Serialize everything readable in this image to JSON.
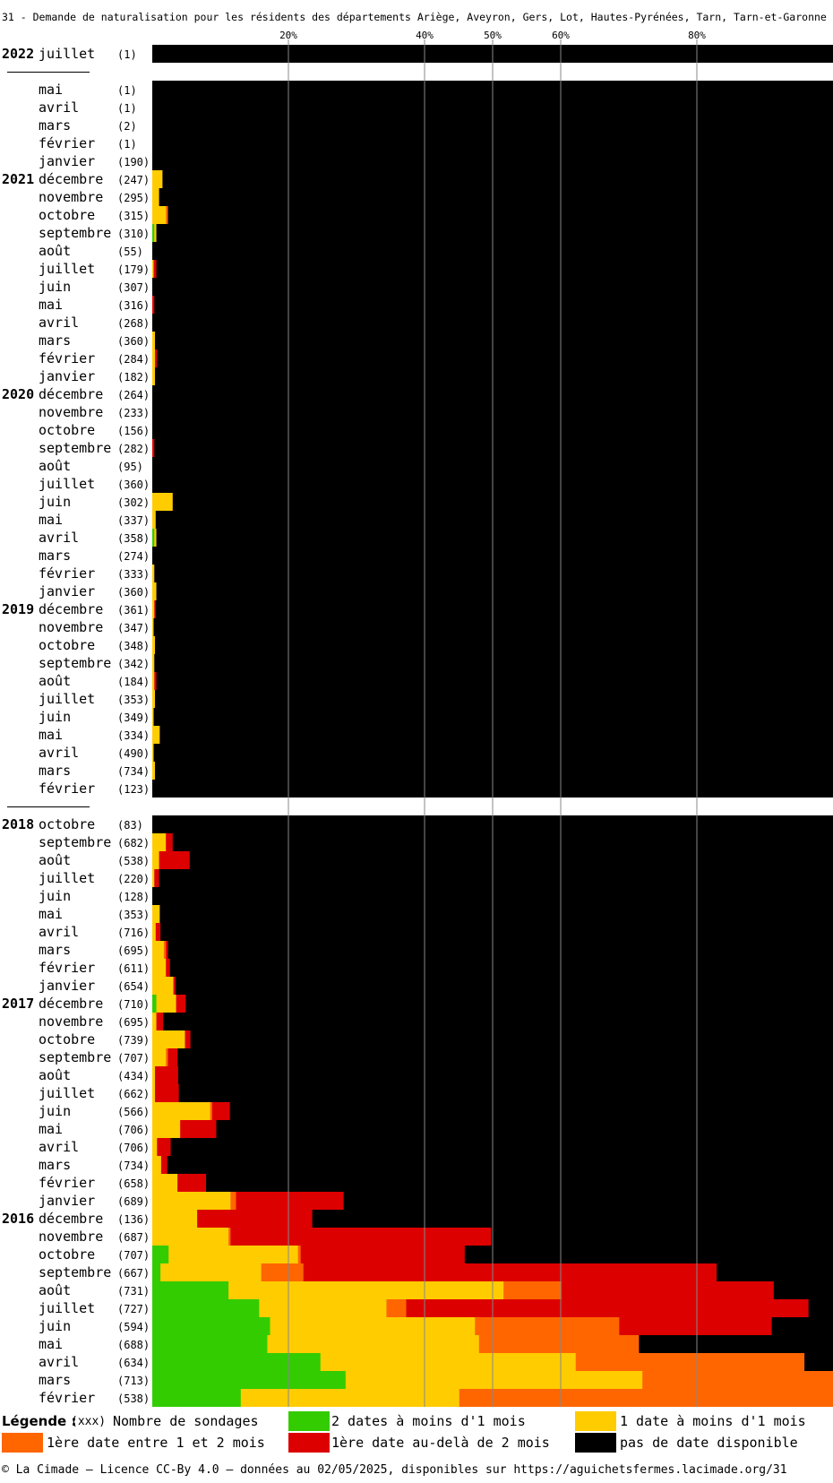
{
  "chart_data": {
    "type": "bar",
    "orientation": "horizontal-stacked-100%",
    "title": "31 - Demande de naturalisation pour les résidents des départements Ariège, Aveyron, Gers, Lot, Hautes-Pyrénées, Tarn, Tarn-et-Garonne",
    "xticks": [
      "20%",
      "40%",
      "50%",
      "60%",
      "80%"
    ],
    "xtick_values": [
      20,
      40,
      50,
      60,
      80
    ],
    "xlim": [
      0,
      100
    ],
    "grid": true,
    "series": [
      {
        "name": "2 dates à moins d'1 mois",
        "color": "#33cc00"
      },
      {
        "name": "1 date à moins d'1 mois",
        "color": "#ffcc00"
      },
      {
        "name": "1ère date entre 1 et 2 mois",
        "color": "#ff6600"
      },
      {
        "name": "1ère date au-delà de 2 mois",
        "color": "#dd0000"
      },
      {
        "name": "pas de date disponible",
        "color": "#000000"
      }
    ],
    "rows": [
      {
        "year": "2022",
        "month": "juillet",
        "count": "(1)",
        "values": [
          0,
          0,
          0,
          0,
          100
        ]
      },
      {
        "sep": true
      },
      {
        "year": "",
        "month": "mai",
        "count": "(1)",
        "values": [
          0,
          0,
          0,
          0,
          100
        ]
      },
      {
        "year": "",
        "month": "avril",
        "count": "(1)",
        "values": [
          0,
          0,
          0,
          0,
          100
        ]
      },
      {
        "year": "",
        "month": "mars",
        "count": "(2)",
        "values": [
          0,
          0,
          0,
          0,
          100
        ]
      },
      {
        "year": "",
        "month": "février",
        "count": "(1)",
        "values": [
          0,
          0,
          0,
          0,
          100
        ]
      },
      {
        "year": "",
        "month": "janvier",
        "count": "(190)",
        "values": [
          0,
          0,
          0,
          0,
          100
        ]
      },
      {
        "year": "2021",
        "month": "décembre",
        "count": "(247)",
        "values": [
          0,
          1.5,
          0,
          0,
          98.5
        ]
      },
      {
        "year": "",
        "month": "novembre",
        "count": "(295)",
        "values": [
          0,
          1,
          0,
          0,
          99
        ]
      },
      {
        "year": "",
        "month": "octobre",
        "count": "(315)",
        "values": [
          0,
          2,
          0.3,
          0,
          97.7
        ]
      },
      {
        "year": "",
        "month": "septembre",
        "count": "(310)",
        "values": [
          0.3,
          0.3,
          0,
          0,
          99.4
        ]
      },
      {
        "year": "",
        "month": "août",
        "count": "(55)",
        "values": [
          0,
          0,
          0,
          0,
          100
        ]
      },
      {
        "year": "",
        "month": "juillet",
        "count": "(179)",
        "values": [
          0,
          0.2,
          0,
          0.4,
          99.4
        ]
      },
      {
        "year": "",
        "month": "juin",
        "count": "(307)",
        "values": [
          0,
          0,
          0,
          0,
          100
        ]
      },
      {
        "year": "",
        "month": "mai",
        "count": "(316)",
        "values": [
          0,
          0,
          0,
          0.3,
          99.7
        ]
      },
      {
        "year": "",
        "month": "avril",
        "count": "(268)",
        "values": [
          0,
          0,
          0,
          0,
          100
        ]
      },
      {
        "year": "",
        "month": "mars",
        "count": "(360)",
        "values": [
          0,
          0.4,
          0,
          0,
          99.6
        ]
      },
      {
        "year": "",
        "month": "février",
        "count": "(284)",
        "values": [
          0,
          0.4,
          0,
          0.3,
          99.3
        ]
      },
      {
        "year": "",
        "month": "janvier",
        "count": "(182)",
        "values": [
          0,
          0.4,
          0,
          0,
          99.6
        ]
      },
      {
        "year": "2020",
        "month": "décembre",
        "count": "(264)",
        "values": [
          0,
          0,
          0,
          0,
          100
        ]
      },
      {
        "year": "",
        "month": "novembre",
        "count": "(233)",
        "values": [
          0,
          0,
          0,
          0,
          100
        ]
      },
      {
        "year": "",
        "month": "octobre",
        "count": "(156)",
        "values": [
          0,
          0,
          0,
          0,
          100
        ]
      },
      {
        "year": "",
        "month": "septembre",
        "count": "(282)",
        "values": [
          0,
          0,
          0,
          0.3,
          99.7
        ]
      },
      {
        "year": "",
        "month": "août",
        "count": "(95)",
        "values": [
          0,
          0,
          0,
          0,
          100
        ]
      },
      {
        "year": "",
        "month": "juillet",
        "count": "(360)",
        "values": [
          0,
          0,
          0,
          0,
          100
        ]
      },
      {
        "year": "",
        "month": "juin",
        "count": "(302)",
        "values": [
          0,
          3,
          0,
          0,
          97
        ]
      },
      {
        "year": "",
        "month": "mai",
        "count": "(337)",
        "values": [
          0,
          0.5,
          0,
          0,
          99.5
        ]
      },
      {
        "year": "",
        "month": "avril",
        "count": "(358)",
        "values": [
          0.3,
          0.3,
          0,
          0,
          99.4
        ]
      },
      {
        "year": "",
        "month": "mars",
        "count": "(274)",
        "values": [
          0,
          0,
          0,
          0,
          100
        ]
      },
      {
        "year": "",
        "month": "février",
        "count": "(333)",
        "values": [
          0,
          0.3,
          0,
          0,
          99.7
        ]
      },
      {
        "year": "",
        "month": "janvier",
        "count": "(360)",
        "values": [
          0,
          0.6,
          0,
          0,
          99.4
        ]
      },
      {
        "year": "2019",
        "month": "décembre",
        "count": "(361)",
        "values": [
          0,
          0.3,
          0,
          0.2,
          99.5
        ]
      },
      {
        "year": "",
        "month": "novembre",
        "count": "(347)",
        "values": [
          0,
          0.2,
          0,
          0,
          99.8
        ]
      },
      {
        "year": "",
        "month": "octobre",
        "count": "(348)",
        "values": [
          0,
          0.4,
          0,
          0,
          99.6
        ]
      },
      {
        "year": "",
        "month": "septembre",
        "count": "(342)",
        "values": [
          0,
          0.3,
          0,
          0,
          99.7
        ]
      },
      {
        "year": "",
        "month": "août",
        "count": "(184)",
        "values": [
          0,
          0.3,
          0,
          0.3,
          99.4
        ]
      },
      {
        "year": "",
        "month": "juillet",
        "count": "(353)",
        "values": [
          0,
          0.4,
          0,
          0,
          99.6
        ]
      },
      {
        "year": "",
        "month": "juin",
        "count": "(349)",
        "values": [
          0,
          0.2,
          0,
          0,
          99.8
        ]
      },
      {
        "year": "",
        "month": "mai",
        "count": "(334)",
        "values": [
          0,
          1.1,
          0,
          0,
          98.9
        ]
      },
      {
        "year": "",
        "month": "avril",
        "count": "(490)",
        "values": [
          0,
          0.2,
          0,
          0,
          99.8
        ]
      },
      {
        "year": "",
        "month": "mars",
        "count": "(734)",
        "values": [
          0,
          0.4,
          0,
          0,
          99.6
        ]
      },
      {
        "year": "",
        "month": "février",
        "count": "(123)",
        "values": [
          0,
          0,
          0,
          0,
          100
        ]
      },
      {
        "sep": true
      },
      {
        "year": "2018",
        "month": "octobre",
        "count": "(83)",
        "values": [
          0,
          0,
          0,
          0,
          100
        ]
      },
      {
        "year": "",
        "month": "septembre",
        "count": "(682)",
        "values": [
          0,
          2,
          0,
          1,
          97
        ]
      },
      {
        "year": "",
        "month": "août",
        "count": "(538)",
        "values": [
          0,
          1,
          0,
          4.5,
          94.5
        ]
      },
      {
        "year": "",
        "month": "juillet",
        "count": "(220)",
        "values": [
          0,
          0.3,
          0,
          0.7,
          99
        ]
      },
      {
        "year": "",
        "month": "juin",
        "count": "(128)",
        "values": [
          0,
          0,
          0,
          0,
          100
        ]
      },
      {
        "year": "",
        "month": "mai",
        "count": "(353)",
        "values": [
          0,
          1.1,
          0,
          0,
          98.9
        ]
      },
      {
        "year": "",
        "month": "avril",
        "count": "(716)",
        "values": [
          0,
          0.5,
          0,
          0.7,
          98.8
        ]
      },
      {
        "year": "",
        "month": "mars",
        "count": "(695)",
        "values": [
          0,
          1.7,
          0.3,
          0.3,
          97.7
        ]
      },
      {
        "year": "",
        "month": "février",
        "count": "(611)",
        "values": [
          0,
          2,
          0,
          0.6,
          97.4
        ]
      },
      {
        "year": "",
        "month": "janvier",
        "count": "(654)",
        "values": [
          0,
          3.1,
          0,
          0.3,
          96.6
        ]
      },
      {
        "year": "2017",
        "month": "décembre",
        "count": "(710)",
        "values": [
          0.6,
          2.9,
          0,
          1.4,
          95.1
        ]
      },
      {
        "year": "",
        "month": "novembre",
        "count": "(695)",
        "values": [
          0,
          0.6,
          0,
          1,
          98.4
        ]
      },
      {
        "year": "",
        "month": "octobre",
        "count": "(739)",
        "values": [
          0,
          4.8,
          0,
          0.8,
          94.4
        ]
      },
      {
        "year": "",
        "month": "septembre",
        "count": "(707)",
        "values": [
          0,
          2,
          0.3,
          1.4,
          96.3
        ]
      },
      {
        "year": "",
        "month": "août",
        "count": "(434)",
        "values": [
          0,
          0.4,
          0,
          3.4,
          96.2
        ]
      },
      {
        "year": "",
        "month": "juillet",
        "count": "(662)",
        "values": [
          0,
          0.4,
          0,
          3.5,
          96.1
        ]
      },
      {
        "year": "",
        "month": "juin",
        "count": "(566)",
        "values": [
          0,
          8.5,
          0.3,
          2.6,
          88.6
        ]
      },
      {
        "year": "",
        "month": "mai",
        "count": "(706)",
        "values": [
          0,
          4.1,
          0,
          5.3,
          90.6
        ]
      },
      {
        "year": "",
        "month": "avril",
        "count": "(706)",
        "values": [
          0,
          0.7,
          0,
          2,
          97.3
        ]
      },
      {
        "year": "",
        "month": "mars",
        "count": "(734)",
        "values": [
          0,
          1.3,
          0,
          0.9,
          97.8
        ]
      },
      {
        "year": "",
        "month": "février",
        "count": "(658)",
        "values": [
          0,
          3.7,
          0,
          4.2,
          92.1
        ]
      },
      {
        "year": "",
        "month": "janvier",
        "count": "(689)",
        "values": [
          0,
          11.5,
          0.8,
          15.8,
          71.9
        ]
      },
      {
        "year": "2016",
        "month": "décembre",
        "count": "(136)",
        "values": [
          0,
          6.6,
          0,
          16.9,
          76.5
        ]
      },
      {
        "year": "",
        "month": "novembre",
        "count": "(687)",
        "values": [
          0,
          11.2,
          0.3,
          38.3,
          50.2
        ]
      },
      {
        "year": "",
        "month": "octobre",
        "count": "(707)",
        "values": [
          2.4,
          19,
          0.4,
          24.1,
          54.1
        ]
      },
      {
        "year": "",
        "month": "septembre",
        "count": "(667)",
        "values": [
          1.2,
          14.8,
          6.2,
          60.7,
          17.1
        ]
      },
      {
        "year": "",
        "month": "août",
        "count": "(731)",
        "values": [
          11.2,
          40.4,
          8.5,
          31.2,
          8.7
        ]
      },
      {
        "year": "",
        "month": "juillet",
        "count": "(727)",
        "values": [
          15.7,
          18.7,
          2.9,
          59.1,
          3.6
        ]
      },
      {
        "year": "",
        "month": "juin",
        "count": "(594)",
        "values": [
          17.3,
          30.1,
          21.2,
          22.4,
          9
        ]
      },
      {
        "year": "",
        "month": "mai",
        "count": "(688)",
        "values": [
          16.9,
          31.1,
          23.5,
          0,
          28.5
        ]
      },
      {
        "year": "",
        "month": "avril",
        "count": "(634)",
        "values": [
          24.7,
          37.5,
          33.6,
          0,
          4.2
        ]
      },
      {
        "year": "",
        "month": "mars",
        "count": "(713)",
        "values": [
          28.4,
          43.6,
          28,
          0,
          0
        ]
      },
      {
        "year": "",
        "month": "février",
        "count": "(538)",
        "values": [
          13,
          32.1,
          54.9,
          0,
          0
        ]
      }
    ]
  },
  "legend": {
    "title": "Légende :",
    "count_key": "(xxx)",
    "count_label": "Nombre de sondages",
    "items": [
      {
        "label": "2 dates à moins d'1 mois",
        "color": "#33cc00"
      },
      {
        "label": "1 date à moins d'1 mois",
        "color": "#ffcc00"
      },
      {
        "label": "1ère date entre 1 et 2 mois",
        "color": "#ff6600"
      },
      {
        "label": "1ère date au-delà de 2 mois",
        "color": "#dd0000"
      },
      {
        "label": "pas de date disponible",
        "color": "#000000"
      }
    ]
  },
  "footer": "© La Cimade — Licence CC-By 4.0 — données au 02/05/2025, disponibles sur https://aguichetsfermes.lacimade.org/31"
}
